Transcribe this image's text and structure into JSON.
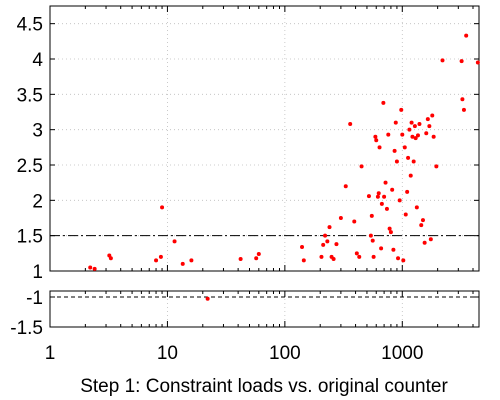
{
  "chart_data": {
    "type": "scatter",
    "title": "",
    "xlabel": "Step 1: Constraint loads vs. original counter",
    "ylabel": "",
    "x_scale": "log",
    "xlim": [
      1,
      4500
    ],
    "x_ticks": [
      1,
      10,
      100,
      1000
    ],
    "x_tick_labels": [
      "1",
      "10",
      "100",
      "1000"
    ],
    "grid": true,
    "marker_color": "#ff0000",
    "reference_line_color": "#000000",
    "panels": [
      {
        "ylim": [
          1,
          4.75
        ],
        "y_ticks": [
          1,
          1.5,
          2,
          2.5,
          3,
          3.5,
          4,
          4.5
        ],
        "y_tick_labels": [
          "1",
          "1.5",
          "2",
          "2.5",
          "3",
          "3.5",
          "4",
          "4.5"
        ],
        "reference_lines": [
          1.5,
          1.0
        ],
        "series": [
          {
            "points": [
              [
                2.2,
                1.05
              ],
              [
                2.4,
                1.03
              ],
              [
                3.2,
                1.22
              ],
              [
                3.3,
                1.18
              ],
              [
                8.0,
                1.15
              ],
              [
                8.8,
                1.2
              ],
              [
                9.0,
                1.9
              ],
              [
                11.5,
                1.42
              ],
              [
                13.5,
                1.1
              ],
              [
                16.0,
                1.15
              ],
              [
                42,
                1.17
              ],
              [
                57,
                1.18
              ],
              [
                60,
                1.24
              ],
              [
                140,
                1.34
              ],
              [
                145,
                1.15
              ],
              [
                205,
                1.2
              ],
              [
                212,
                1.37
              ],
              [
                220,
                1.5
              ],
              [
                230,
                1.42
              ],
              [
                240,
                1.62
              ],
              [
                250,
                1.2
              ],
              [
                260,
                1.17
              ],
              [
                275,
                1.38
              ],
              [
                300,
                1.75
              ],
              [
                330,
                2.2
              ],
              [
                360,
                3.08
              ],
              [
                390,
                1.7
              ],
              [
                410,
                1.25
              ],
              [
                430,
                1.2
              ],
              [
                450,
                2.48
              ],
              [
                520,
                2.06
              ],
              [
                540,
                1.5
              ],
              [
                550,
                1.78
              ],
              [
                560,
                1.43
              ],
              [
                570,
                1.2
              ],
              [
                590,
                2.9
              ],
              [
                600,
                2.85
              ],
              [
                620,
                2.05
              ],
              [
                630,
                2.1
              ],
              [
                640,
                2.75
              ],
              [
                660,
                1.32
              ],
              [
                670,
                1.95
              ],
              [
                690,
                3.38
              ],
              [
                700,
                2.05
              ],
              [
                720,
                2.25
              ],
              [
                740,
                1.88
              ],
              [
                760,
                2.93
              ],
              [
                780,
                1.6
              ],
              [
                800,
                1.55
              ],
              [
                820,
                2.15
              ],
              [
                840,
                1.3
              ],
              [
                860,
                2.7
              ],
              [
                880,
                3.1
              ],
              [
                900,
                2.55
              ],
              [
                920,
                1.18
              ],
              [
                950,
                2.0
              ],
              [
                980,
                3.28
              ],
              [
                1000,
                2.93
              ],
              [
                1020,
                1.15
              ],
              [
                1050,
                2.75
              ],
              [
                1070,
                1.8
              ],
              [
                1100,
                2.12
              ],
              [
                1120,
                2.6
              ],
              [
                1150,
                3.0
              ],
              [
                1180,
                2.35
              ],
              [
                1200,
                3.1
              ],
              [
                1220,
                2.9
              ],
              [
                1250,
                2.55
              ],
              [
                1280,
                3.05
              ],
              [
                1300,
                2.88
              ],
              [
                1330,
                1.9
              ],
              [
                1360,
                2.92
              ],
              [
                1400,
                3.08
              ],
              [
                1450,
                1.65
              ],
              [
                1500,
                1.72
              ],
              [
                1550,
                1.4
              ],
              [
                1600,
                2.95
              ],
              [
                1650,
                3.15
              ],
              [
                1700,
                3.05
              ],
              [
                1750,
                1.45
              ],
              [
                1800,
                3.2
              ],
              [
                1850,
                2.9
              ],
              [
                1950,
                2.48
              ],
              [
                2200,
                3.98
              ],
              [
                3200,
                3.97
              ],
              [
                3250,
                3.43
              ],
              [
                3350,
                3.28
              ],
              [
                3500,
                4.33
              ],
              [
                4400,
                3.95
              ]
            ]
          }
        ]
      },
      {
        "ylim": [
          -1.5,
          -0.9
        ],
        "y_ticks": [
          -1,
          -1.5
        ],
        "y_tick_labels": [
          "-1",
          "-1.5"
        ],
        "reference_lines": [
          -1.0
        ],
        "series": [
          {
            "points": [
              [
                22,
                -1.03
              ]
            ]
          }
        ]
      }
    ]
  }
}
